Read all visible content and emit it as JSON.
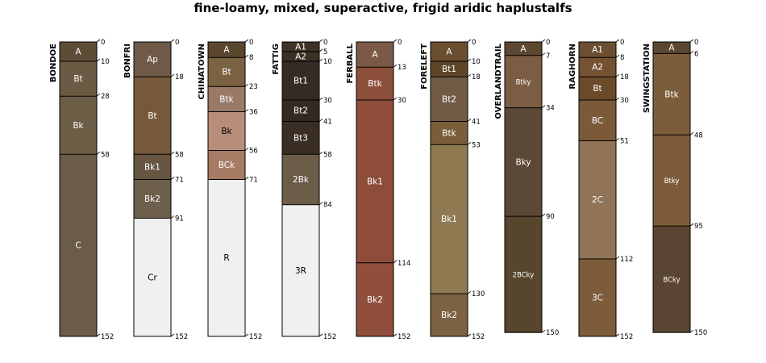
{
  "title": "fine-loamy, mixed, superactive, frigid aridic haplustalfs",
  "profiles": [
    {
      "name": "BONDOE",
      "horizons": [
        {
          "name": "A",
          "top": 0,
          "bottom": 10,
          "color": "#5e4d36",
          "text": "#ffffff"
        },
        {
          "name": "Bt",
          "top": 10,
          "bottom": 28,
          "color": "#6b5b44",
          "text": "#ffffff"
        },
        {
          "name": "Bk",
          "top": 28,
          "bottom": 58,
          "color": "#6c5d47",
          "text": "#ffffff"
        },
        {
          "name": "C",
          "top": 58,
          "bottom": 152,
          "color": "#6a5c48",
          "text": "#ffffff"
        }
      ],
      "depth_labels": [
        "0",
        "10",
        "28",
        "58",
        "152"
      ]
    },
    {
      "name": "BONFRI",
      "horizons": [
        {
          "name": "Ap",
          "top": 0,
          "bottom": 18,
          "color": "#6e5a47",
          "text": "#ffffff"
        },
        {
          "name": "Bt",
          "top": 18,
          "bottom": 58,
          "color": "#76593b",
          "text": "#ffffff"
        },
        {
          "name": "Bk1",
          "top": 58,
          "bottom": 71,
          "color": "#665641",
          "text": "#ffffff"
        },
        {
          "name": "Bk2",
          "top": 71,
          "bottom": 91,
          "color": "#6d5f4b",
          "text": "#ffffff"
        },
        {
          "name": "Cr",
          "top": 91,
          "bottom": 152,
          "color": "#f0f0f0",
          "text": "#000000"
        }
      ],
      "depth_labels": [
        "0",
        "18",
        "58",
        "71",
        "91",
        "152"
      ]
    },
    {
      "name": "CHINATOWN",
      "horizons": [
        {
          "name": "A",
          "top": 0,
          "bottom": 8,
          "color": "#5b4630",
          "text": "#ffffff"
        },
        {
          "name": "Bt",
          "top": 8,
          "bottom": 23,
          "color": "#7a6242",
          "text": "#ffffff"
        },
        {
          "name": "Btk",
          "top": 23,
          "bottom": 36,
          "color": "#9a7a67",
          "text": "#ffffff"
        },
        {
          "name": "Bk",
          "top": 36,
          "bottom": 56,
          "color": "#b88e7a",
          "text": "#000000"
        },
        {
          "name": "BCk",
          "top": 56,
          "bottom": 71,
          "color": "#a67d64",
          "text": "#ffffff"
        },
        {
          "name": "R",
          "top": 71,
          "bottom": 152,
          "color": "#f0f0f0",
          "text": "#000000"
        }
      ],
      "depth_labels": [
        "0",
        "8",
        "23",
        "36",
        "56",
        "71",
        "152"
      ]
    },
    {
      "name": "FATTIG",
      "horizons": [
        {
          "name": "A1",
          "top": 0,
          "bottom": 5,
          "color": "#3f3124",
          "text": "#ffffff"
        },
        {
          "name": "A2",
          "top": 5,
          "bottom": 10,
          "color": "#3c3024",
          "text": "#ffffff"
        },
        {
          "name": "Bt1",
          "top": 10,
          "bottom": 30,
          "color": "#352b24",
          "text": "#ffffff"
        },
        {
          "name": "Bt2",
          "top": 30,
          "bottom": 41,
          "color": "#342a22",
          "text": "#ffffff"
        },
        {
          "name": "Bt3",
          "top": 41,
          "bottom": 58,
          "color": "#3a2e24",
          "text": "#ffffff"
        },
        {
          "name": "2Bk",
          "top": 58,
          "bottom": 84,
          "color": "#6b5c48",
          "text": "#ffffff"
        },
        {
          "name": "3R",
          "top": 84,
          "bottom": 152,
          "color": "#f0f0f0",
          "text": "#000000"
        }
      ],
      "depth_labels": [
        "0",
        "5",
        "10",
        "30",
        "41",
        "58",
        "84",
        "152"
      ]
    },
    {
      "name": "FERBALL",
      "horizons": [
        {
          "name": "A",
          "top": 0,
          "bottom": 13,
          "color": "#7d5a48",
          "text": "#ffffff"
        },
        {
          "name": "Btk",
          "top": 13,
          "bottom": 30,
          "color": "#8c4f3b",
          "text": "#ffffff"
        },
        {
          "name": "Bk1",
          "top": 30,
          "bottom": 114,
          "color": "#8e4d39",
          "text": "#ffffff"
        },
        {
          "name": "Bk2",
          "top": 114,
          "bottom": 152,
          "color": "#8f4f3c",
          "text": "#ffffff"
        }
      ],
      "depth_labels": [
        "0",
        "13",
        "30",
        "114",
        "152"
      ]
    },
    {
      "name": "FORELEFT",
      "horizons": [
        {
          "name": "A",
          "top": 0,
          "bottom": 10,
          "color": "#6a4e30",
          "text": "#ffffff"
        },
        {
          "name": "Bt1",
          "top": 10,
          "bottom": 18,
          "color": "#604628",
          "text": "#ffffff"
        },
        {
          "name": "Bt2",
          "top": 18,
          "bottom": 41,
          "color": "#725b45",
          "text": "#ffffff"
        },
        {
          "name": "Btk",
          "top": 41,
          "bottom": 53,
          "color": "#7a5e3c",
          "text": "#ffffff"
        },
        {
          "name": "Bk1",
          "top": 53,
          "bottom": 130,
          "color": "#8f7a52",
          "text": "#ffffff"
        },
        {
          "name": "Bk2",
          "top": 130,
          "bottom": 152,
          "color": "#7c6240",
          "text": "#ffffff"
        }
      ],
      "depth_labels": [
        "0",
        "10",
        "18",
        "41",
        "53",
        "130",
        "152"
      ]
    },
    {
      "name": "OVERLANDTRAIL",
      "horizons": [
        {
          "name": "A",
          "top": 0,
          "bottom": 7,
          "color": "#5e4832",
          "text": "#ffffff"
        },
        {
          "name": "Btky",
          "top": 7,
          "bottom": 34,
          "color": "#7a5d42",
          "text": "#ffffff"
        },
        {
          "name": "Bky",
          "top": 34,
          "bottom": 90,
          "color": "#5b4836",
          "text": "#ffffff"
        },
        {
          "name": "2BCky",
          "top": 90,
          "bottom": 150,
          "color": "#57452e",
          "text": "#ffffff"
        }
      ],
      "depth_labels": [
        "0",
        "7",
        "34",
        "90",
        "150"
      ]
    },
    {
      "name": "RAGHORN",
      "horizons": [
        {
          "name": "A1",
          "top": 0,
          "bottom": 8,
          "color": "#6b4f30",
          "text": "#ffffff"
        },
        {
          "name": "A2",
          "top": 8,
          "bottom": 18,
          "color": "#745232",
          "text": "#ffffff"
        },
        {
          "name": "Bt",
          "top": 18,
          "bottom": 30,
          "color": "#6b4a2c",
          "text": "#ffffff"
        },
        {
          "name": "BC",
          "top": 30,
          "bottom": 51,
          "color": "#7b5a3a",
          "text": "#ffffff"
        },
        {
          "name": "2C",
          "top": 51,
          "bottom": 112,
          "color": "#917457",
          "text": "#ffffff"
        },
        {
          "name": "3C",
          "top": 112,
          "bottom": 152,
          "color": "#7c5c3a",
          "text": "#ffffff"
        }
      ],
      "depth_labels": [
        "0",
        "8",
        "18",
        "30",
        "51",
        "112",
        "152"
      ]
    },
    {
      "name": "SWINGSTATION",
      "horizons": [
        {
          "name": "A",
          "top": 0,
          "bottom": 6,
          "color": "#5c4730",
          "text": "#ffffff"
        },
        {
          "name": "Btk",
          "top": 6,
          "bottom": 48,
          "color": "#7c5d3b",
          "text": "#ffffff"
        },
        {
          "name": "Btky",
          "top": 48,
          "bottom": 95,
          "color": "#7c5c3a",
          "text": "#ffffff"
        },
        {
          "name": "BCky",
          "top": 95,
          "bottom": 150,
          "color": "#5a4532",
          "text": "#ffffff"
        }
      ],
      "depth_labels": [
        "0",
        "6",
        "48",
        "95",
        "150"
      ]
    }
  ]
}
